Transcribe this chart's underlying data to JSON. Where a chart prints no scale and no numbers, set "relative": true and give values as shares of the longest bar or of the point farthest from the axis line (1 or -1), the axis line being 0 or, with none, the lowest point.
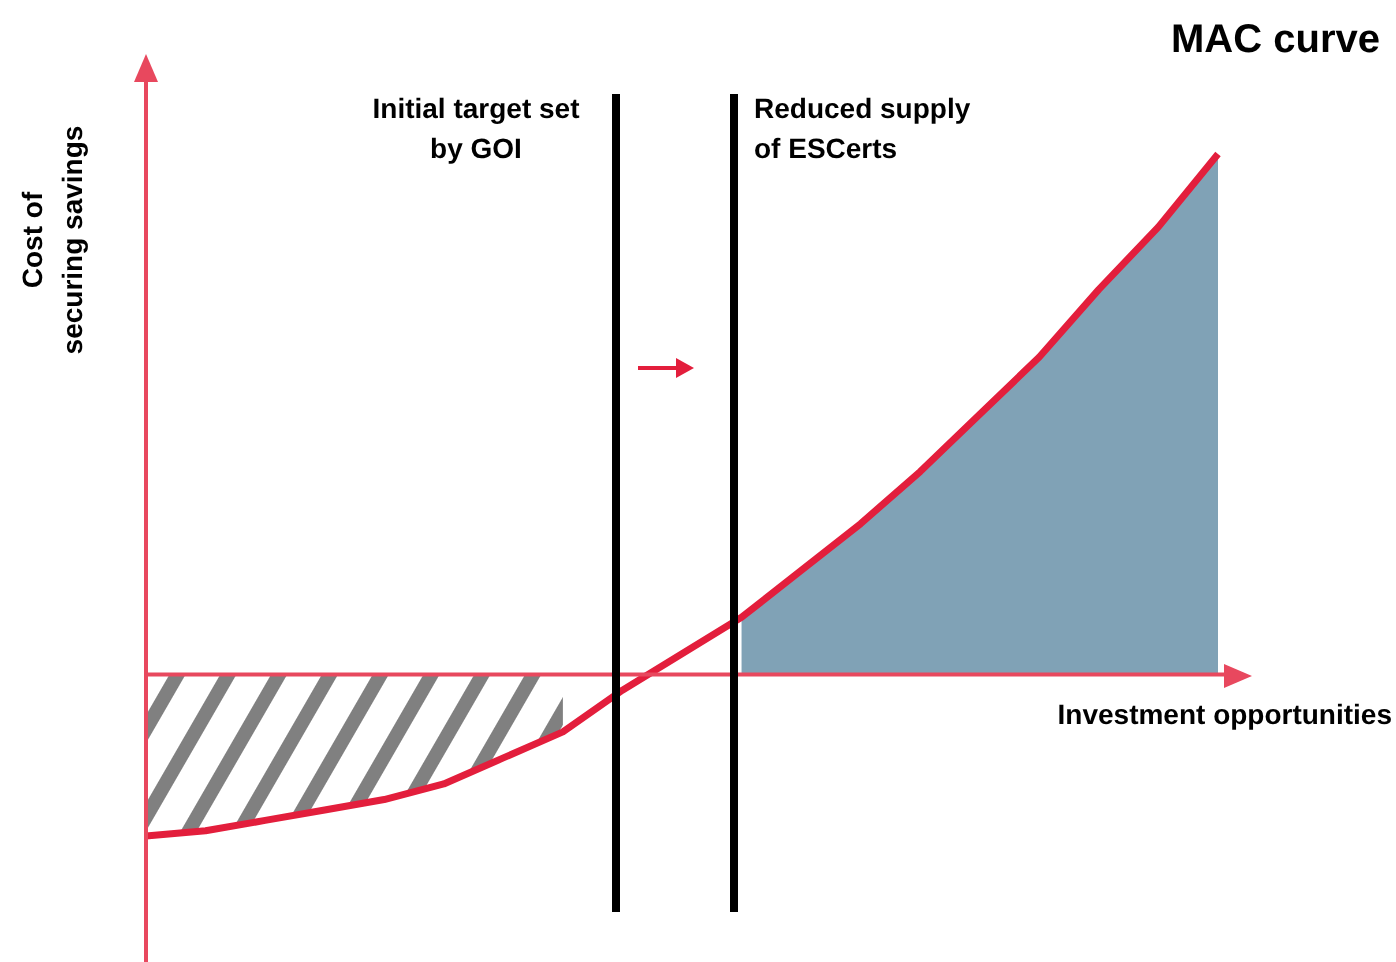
{
  "chart_data": {
    "type": "line",
    "title": "MAC curve",
    "xlabel": "Investment opportunities",
    "ylabel": "Cost of securing savings",
    "relative": true,
    "ref_lines": [
      {
        "axis": "y",
        "value": 0,
        "color": "#e8485e"
      }
    ],
    "annotations": [
      "Initial target set by GOI",
      "Reduced supply of ESCerts"
    ],
    "categories": [
      null,
      null,
      null,
      null,
      null,
      null,
      null,
      null,
      null,
      null,
      null,
      null,
      null,
      null,
      null,
      null,
      null,
      null,
      null
    ],
    "series": [
      {
        "color": "#e31e3c",
        "values": [
          -0.31,
          -0.3,
          -0.28,
          -0.26,
          -0.24,
          -0.21,
          -0.16,
          -0.11,
          -0.03,
          0.04,
          0.11,
          0.2,
          0.29,
          0.39,
          0.5,
          0.61,
          0.74,
          0.86,
          1.0
        ]
      }
    ]
  }
}
